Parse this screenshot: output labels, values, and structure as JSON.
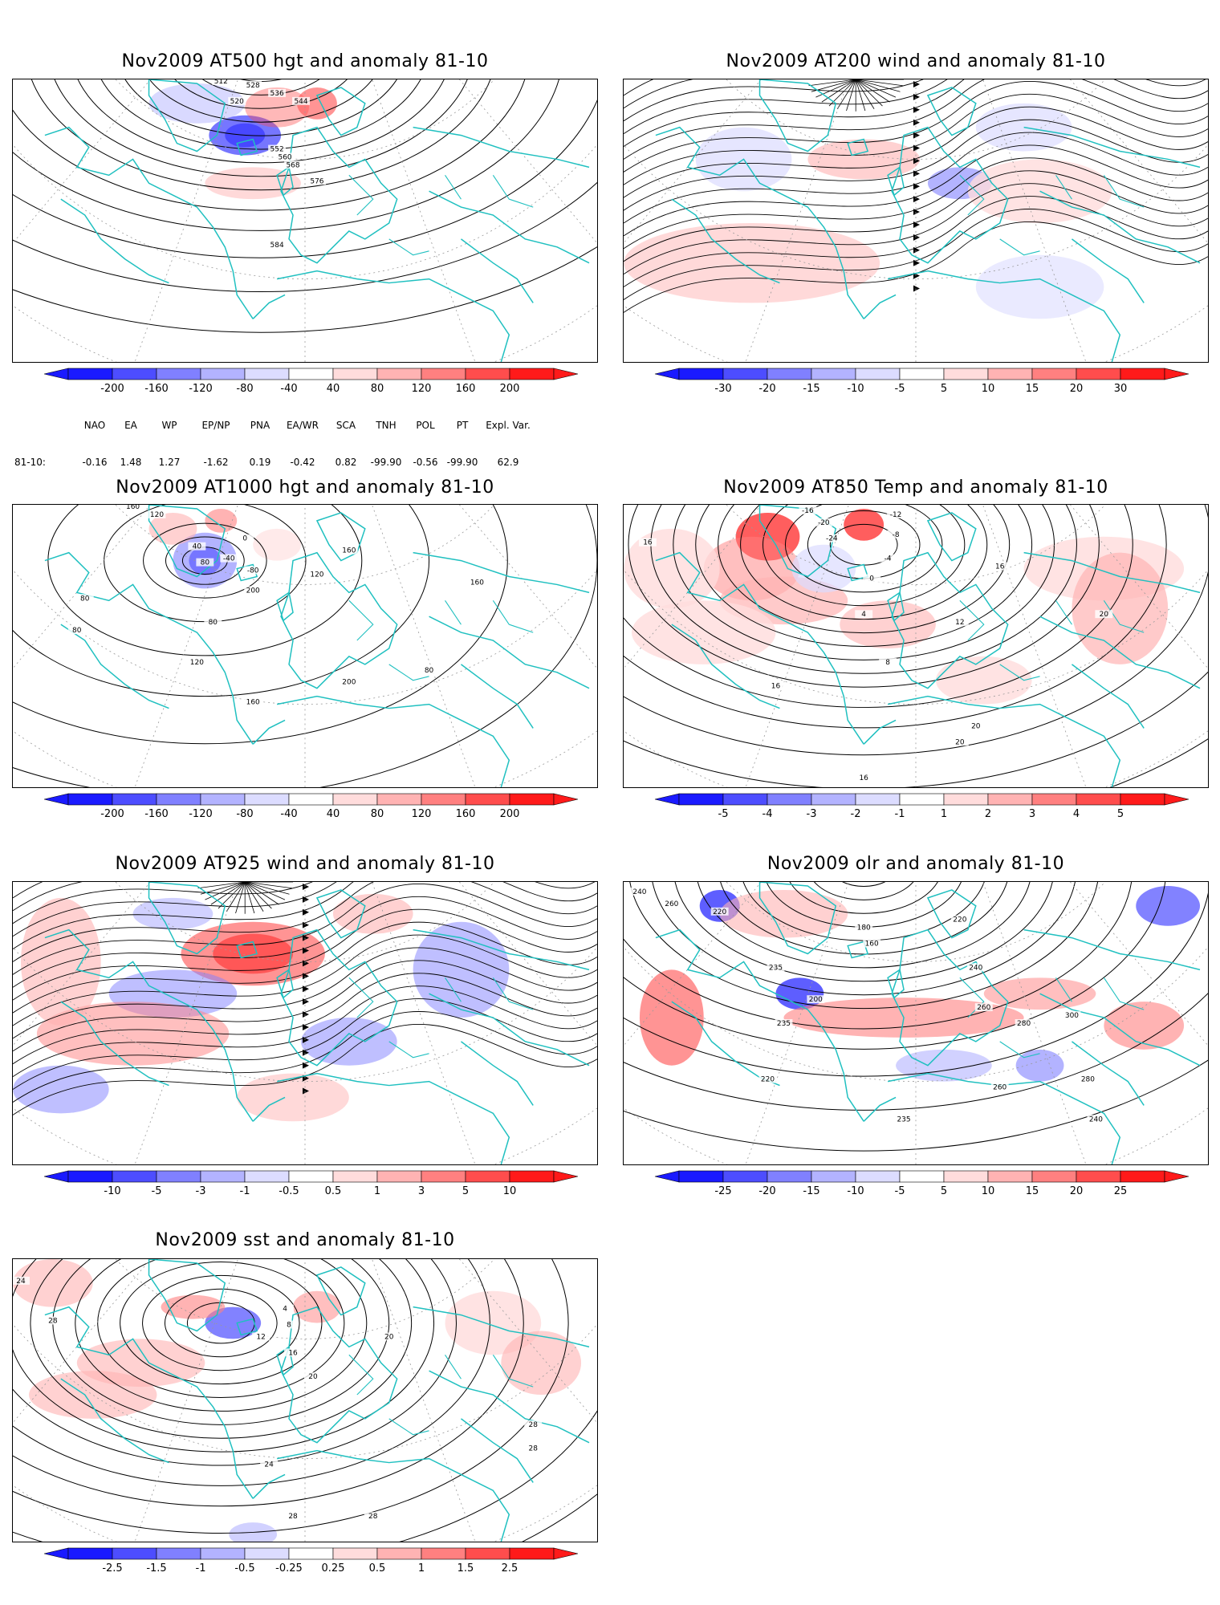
{
  "panels": [
    {
      "id": "p1",
      "title": "Nov2009 AT500 hgt and anomaly 81-10",
      "contour_labels": [
        "512",
        "520",
        "528",
        "536",
        "544",
        "552",
        "560",
        "568",
        "576",
        "584"
      ],
      "colorbar": [
        "-200",
        "-160",
        "-120",
        "-80",
        "-40",
        "40",
        "80",
        "120",
        "160",
        "200"
      ]
    },
    {
      "id": "p2",
      "title": "Nov2009 AT200 wind and anomaly 81-10",
      "contour_labels": [],
      "colorbar": [
        "-30",
        "-20",
        "-15",
        "-10",
        "-5",
        "5",
        "10",
        "15",
        "20",
        "30"
      ]
    },
    {
      "id": "p3",
      "title": "Nov2009 AT1000 hgt and anomaly 81-10",
      "contour_labels": [
        "160",
        "120",
        "80",
        "40",
        "0",
        "-40",
        "-80",
        "200",
        "160",
        "120",
        "80",
        "80",
        "80",
        "120",
        "160",
        "200",
        "160",
        "80"
      ],
      "colorbar": [
        "-200",
        "-160",
        "-120",
        "-80",
        "-40",
        "40",
        "80",
        "120",
        "160",
        "200"
      ]
    },
    {
      "id": "p4",
      "title": "Nov2009 AT850 Temp and anomaly 81-10",
      "contour_labels": [
        "-16",
        "-20",
        "-24",
        "-12",
        "-8",
        "-4",
        "0",
        "4",
        "8",
        "12",
        "16",
        "20",
        "16",
        "20",
        "20",
        "16",
        "16"
      ],
      "colorbar": [
        "-5",
        "-4",
        "-3",
        "-2",
        "-1",
        "1",
        "2",
        "3",
        "4",
        "5"
      ]
    },
    {
      "id": "p5",
      "title": "Nov2009 AT925 wind and anomaly 81-10",
      "contour_labels": [],
      "colorbar": [
        "-10",
        "-5",
        "-3",
        "-1",
        "-0.5",
        "0.5",
        "1",
        "3",
        "5",
        "10"
      ]
    },
    {
      "id": "p6",
      "title": "Nov2009 olr and anomaly 81-10",
      "contour_labels": [
        "240",
        "260",
        "220",
        "235",
        "200",
        "180",
        "160",
        "220",
        "260",
        "280",
        "300",
        "240",
        "235",
        "220",
        "260",
        "280",
        "240",
        "235"
      ],
      "colorbar": [
        "-25",
        "-20",
        "-15",
        "-10",
        "-5",
        "5",
        "10",
        "15",
        "20",
        "25"
      ]
    },
    {
      "id": "p7",
      "title": "Nov2009 sst and anomaly 81-10",
      "contour_labels": [
        "24",
        "28",
        "4",
        "8",
        "12",
        "16",
        "20",
        "24",
        "28",
        "28",
        "28",
        "28",
        "20"
      ],
      "colorbar": [
        "-2.5",
        "-1.5",
        "-1",
        "-0.5",
        "-0.25",
        "0.25",
        "0.5",
        "1",
        "1.5",
        "2.5"
      ]
    }
  ],
  "teleconnections": {
    "headers": [
      "NAO",
      "EA",
      "WP",
      "EP/NP",
      "PNA",
      "EA/WR",
      "SCA",
      "TNH",
      "POL",
      "PT",
      "Expl. Var."
    ],
    "row_label": "81-10:",
    "values": [
      "-0.16",
      "1.48",
      "1.27",
      "-1.62",
      "0.19",
      "-0.42",
      "0.82",
      "-99.90",
      "-0.56",
      "-99.90",
      "62.9"
    ]
  },
  "colorbar_colors": [
    "#1a1aff",
    "#4d4dff",
    "#8080ff",
    "#b3b3ff",
    "#dcdcff",
    "#ffffff",
    "#ffdcdc",
    "#ffb3b3",
    "#ff8080",
    "#ff4d4d",
    "#ff1a1a"
  ],
  "colors": {
    "coast": "#20c0c0",
    "contour": "#000000",
    "grid": "#999999"
  }
}
